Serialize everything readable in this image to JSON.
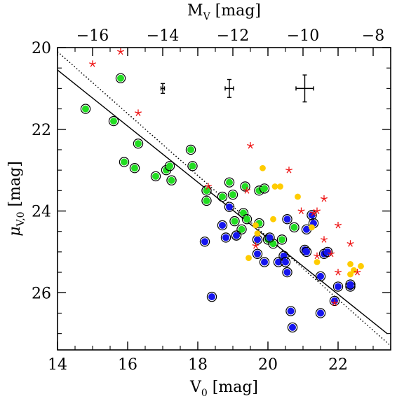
{
  "chart_data": {
    "type": "scatter",
    "xlabel": "V",
    "xlabel_sub": "0",
    "xlabel_unit": "[mag]",
    "ylabel": "μ",
    "ylabel_sub": "V,0",
    "ylabel_unit": "[mag]",
    "top_xlabel": "M",
    "top_xlabel_sub": "V",
    "top_xlabel_unit": "[mag]",
    "xlim": [
      14,
      23.5
    ],
    "ylim": [
      27.4,
      20
    ],
    "top_xlim": [
      -17.0,
      -7.5
    ],
    "x_ticks": [
      "14",
      "16",
      "18",
      "20",
      "22"
    ],
    "x_tick_values": [
      14,
      16,
      18,
      20,
      22
    ],
    "y_ticks": [
      "20",
      "22",
      "24",
      "26"
    ],
    "y_tick_values": [
      20,
      22,
      24,
      26
    ],
    "top_ticks": [
      "−16",
      "−14",
      "−12",
      "−10",
      "−8"
    ],
    "top_tick_values": [
      -16,
      -14,
      -12,
      -10,
      -8
    ],
    "grid": false,
    "colors": {
      "green": "#22dd22",
      "blue": "#1515ee",
      "yellow": "#ffcc00",
      "red": "#ee1111",
      "line": "#000000"
    },
    "series": [
      {
        "marker": "green-circle-ring",
        "points": [
          [
            14.8,
            21.5
          ],
          [
            15.6,
            21.8
          ],
          [
            15.8,
            20.75
          ],
          [
            15.9,
            22.8
          ],
          [
            16.2,
            22.95
          ],
          [
            16.3,
            22.35
          ],
          [
            16.8,
            23.15
          ],
          [
            17.1,
            23.0
          ],
          [
            17.2,
            22.9
          ],
          [
            17.25,
            23.25
          ],
          [
            17.8,
            22.5
          ],
          [
            17.85,
            22.9
          ],
          [
            18.25,
            23.5
          ],
          [
            18.25,
            23.75
          ],
          [
            18.7,
            23.65
          ],
          [
            18.9,
            23.3
          ],
          [
            19.0,
            23.6
          ],
          [
            19.05,
            24.25
          ],
          [
            19.1,
            24.6
          ],
          [
            19.3,
            24.05
          ],
          [
            19.35,
            23.4
          ],
          [
            19.4,
            24.2
          ],
          [
            19.25,
            24.45
          ],
          [
            19.75,
            23.5
          ],
          [
            19.9,
            23.45
          ],
          [
            20.0,
            24.7
          ],
          [
            20.15,
            24.8
          ],
          [
            20.4,
            24.7
          ],
          [
            20.75,
            24.4
          ],
          [
            19.75,
            24.3
          ]
        ]
      },
      {
        "marker": "blue-circle-ring",
        "points": [
          [
            18.2,
            24.75
          ],
          [
            18.4,
            26.1
          ],
          [
            18.7,
            24.35
          ],
          [
            18.8,
            24.65
          ],
          [
            18.9,
            23.9
          ],
          [
            19.1,
            24.6
          ],
          [
            19.7,
            24.7
          ],
          [
            19.7,
            25.05
          ],
          [
            19.9,
            25.25
          ],
          [
            20.05,
            24.65
          ],
          [
            20.3,
            25.25
          ],
          [
            20.45,
            25.1
          ],
          [
            20.5,
            25.25
          ],
          [
            20.55,
            24.2
          ],
          [
            20.55,
            25.5
          ],
          [
            20.65,
            26.45
          ],
          [
            20.7,
            26.85
          ],
          [
            21.05,
            24.95
          ],
          [
            21.1,
            24.45
          ],
          [
            21.1,
            25.0
          ],
          [
            21.25,
            24.1
          ],
          [
            21.3,
            24.3
          ],
          [
            21.5,
            25.6
          ],
          [
            21.5,
            26.5
          ],
          [
            21.6,
            25.05
          ],
          [
            21.7,
            25.0
          ],
          [
            21.9,
            26.2
          ],
          [
            22.0,
            25.85
          ],
          [
            22.35,
            25.85
          ],
          [
            22.35,
            25.8
          ]
        ]
      },
      {
        "marker": "yellow-dot",
        "points": [
          [
            19.45,
            25.15
          ],
          [
            19.65,
            24.35
          ],
          [
            19.85,
            22.95
          ],
          [
            20.15,
            24.2
          ],
          [
            20.2,
            23.4
          ],
          [
            20.35,
            23.4
          ],
          [
            20.85,
            23.65
          ],
          [
            21.25,
            24.4
          ],
          [
            21.4,
            25.25
          ],
          [
            22.35,
            25.3
          ],
          [
            22.35,
            25.55
          ],
          [
            22.65,
            25.35
          ],
          [
            22.45,
            25.45
          ],
          [
            19.7,
            24.55
          ]
        ]
      },
      {
        "marker": "red-star",
        "points": [
          [
            15.0,
            20.4
          ],
          [
            15.8,
            20.1
          ],
          [
            16.3,
            21.6
          ],
          [
            18.3,
            23.4
          ],
          [
            19.4,
            23.5
          ],
          [
            19.5,
            22.4
          ],
          [
            19.65,
            24.85
          ],
          [
            20.6,
            23.0
          ],
          [
            20.95,
            24.0
          ],
          [
            21.3,
            24.05
          ],
          [
            21.4,
            24.0
          ],
          [
            21.4,
            25.1
          ],
          [
            21.6,
            23.7
          ],
          [
            21.6,
            24.7
          ],
          [
            21.8,
            25.05
          ],
          [
            21.9,
            26.25
          ],
          [
            22.0,
            24.35
          ],
          [
            22.0,
            25.5
          ],
          [
            22.35,
            24.8
          ],
          [
            22.55,
            25.5
          ]
        ]
      }
    ],
    "fit_lines": [
      {
        "style": "solid",
        "points": [
          [
            14.0,
            20.55
          ],
          [
            23.4,
            27.0
          ]
        ]
      },
      {
        "style": "dotted",
        "points": [
          [
            14.0,
            20.1
          ],
          [
            23.5,
            27.3
          ]
        ]
      }
    ],
    "error_bars": [
      {
        "x": 17.0,
        "y": 21.0,
        "xerr": 0.05,
        "yerr": 0.12
      },
      {
        "x": 18.9,
        "y": 21.0,
        "xerr": 0.12,
        "yerr": 0.22
      },
      {
        "x": 21.05,
        "y": 21.0,
        "xerr": 0.25,
        "yerr": 0.33
      }
    ]
  }
}
